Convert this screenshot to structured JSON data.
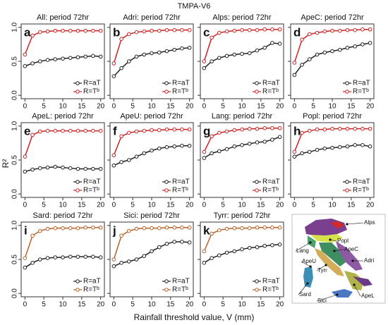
{
  "title": "TMPA-V6",
  "xlabel": "Rainfall threshold value, V (mm)",
  "ylabel": "R²",
  "chart_data": [
    {
      "type": "line",
      "letter": "a",
      "title": "All: period 72hr",
      "x": [
        0,
        2,
        4,
        6,
        8,
        10,
        12,
        14,
        16,
        18,
        20
      ],
      "xlim": [
        -1,
        21
      ],
      "xticks": [
        0,
        5,
        10,
        15,
        20
      ],
      "ylim": [
        -0.05,
        1.05
      ],
      "yticks": [
        {
          "value": 0,
          "label": "0.0"
        },
        {
          "value": 0.5,
          "label": "0.5"
        },
        {
          "value": 1,
          "label": "1.0"
        }
      ],
      "series": [
        {
          "name": "R=aT",
          "color": "#222222",
          "values": [
            0.43,
            0.47,
            0.5,
            0.52,
            0.53,
            0.54,
            0.55,
            0.56,
            0.57,
            0.58,
            0.57
          ]
        },
        {
          "name": "R=Tᵇ",
          "color": "#cc2222",
          "values": [
            0.6,
            0.88,
            0.93,
            0.94,
            0.95,
            0.95,
            0.95,
            0.95,
            0.95,
            0.95,
            0.95
          ]
        }
      ]
    },
    {
      "type": "line",
      "letter": "b",
      "title": "Adri: period 72hr",
      "x": [
        0,
        2,
        4,
        6,
        8,
        10,
        12,
        14,
        16,
        18,
        20
      ],
      "xlim": [
        -1,
        21
      ],
      "xticks": [
        0,
        5,
        10,
        15,
        20
      ],
      "ylim": [
        -0.05,
        1.05
      ],
      "series": [
        {
          "name": "R=aT",
          "color": "#222222",
          "values": [
            0.28,
            0.4,
            0.5,
            0.57,
            0.6,
            0.62,
            0.63,
            0.65,
            0.67,
            0.69,
            0.7
          ]
        },
        {
          "name": "R=Tᵇ",
          "color": "#cc2222",
          "values": [
            0.47,
            0.83,
            0.9,
            0.93,
            0.94,
            0.95,
            0.95,
            0.96,
            0.96,
            0.96,
            0.96
          ]
        }
      ]
    },
    {
      "type": "line",
      "letter": "c",
      "title": "Alps: period 72hr",
      "x": [
        0,
        2,
        4,
        6,
        8,
        10,
        12,
        14,
        16,
        18,
        20
      ],
      "xlim": [
        -1,
        21
      ],
      "xticks": [
        0,
        5,
        10,
        15,
        20
      ],
      "ylim": [
        -0.05,
        1.05
      ],
      "series": [
        {
          "name": "R=aT",
          "color": "#222222",
          "values": [
            0.4,
            0.5,
            0.55,
            0.58,
            0.6,
            0.61,
            0.62,
            0.66,
            0.7,
            0.77,
            0.76
          ]
        },
        {
          "name": "R=Tᵇ",
          "color": "#cc2222",
          "values": [
            0.5,
            0.85,
            0.92,
            0.94,
            0.95,
            0.96,
            0.96,
            0.96,
            0.97,
            0.97,
            0.97
          ]
        }
      ]
    },
    {
      "type": "line",
      "letter": "d",
      "title": "ApeC: period 72hr",
      "x": [
        0,
        2,
        4,
        6,
        8,
        10,
        12,
        14,
        16,
        18,
        20
      ],
      "xlim": [
        -1,
        21
      ],
      "xticks": [
        0,
        5,
        10,
        15,
        20
      ],
      "ylim": [
        -0.05,
        1.05
      ],
      "series": [
        {
          "name": "R=aT",
          "color": "#222222",
          "values": [
            0.3,
            0.45,
            0.53,
            0.6,
            0.63,
            0.65,
            0.67,
            0.7,
            0.72,
            0.75,
            0.77
          ]
        },
        {
          "name": "R=Tᵇ",
          "color": "#cc2222",
          "values": [
            0.48,
            0.82,
            0.9,
            0.92,
            0.94,
            0.95,
            0.95,
            0.96,
            0.96,
            0.97,
            0.97
          ]
        }
      ]
    },
    {
      "type": "line",
      "letter": "e",
      "title": "ApeL: period 72hr",
      "x": [
        0,
        2,
        4,
        6,
        8,
        10,
        12,
        14,
        16,
        18,
        20
      ],
      "xlim": [
        -1,
        21
      ],
      "xticks": [
        0,
        5,
        10,
        15,
        20
      ],
      "ylim": [
        -0.05,
        1.05
      ],
      "yticks": [
        {
          "value": 0,
          "label": "0.0"
        },
        {
          "value": 0.5,
          "label": "0.5"
        },
        {
          "value": 1,
          "label": "1.0"
        }
      ],
      "series": [
        {
          "name": "R=aT",
          "color": "#222222",
          "values": [
            0.33,
            0.36,
            0.38,
            0.39,
            0.4,
            0.39,
            0.38,
            0.37,
            0.37,
            0.37,
            0.37
          ]
        },
        {
          "name": "R=Tᵇ",
          "color": "#cc2222",
          "values": [
            0.55,
            0.87,
            0.92,
            0.93,
            0.93,
            0.93,
            0.93,
            0.93,
            0.93,
            0.93,
            0.93
          ]
        }
      ]
    },
    {
      "type": "line",
      "letter": "f",
      "title": "ApeU: period 72hr",
      "x": [
        0,
        2,
        4,
        6,
        8,
        10,
        12,
        14,
        16,
        18,
        20
      ],
      "xlim": [
        -1,
        21
      ],
      "xticks": [
        0,
        5,
        10,
        15,
        20
      ],
      "ylim": [
        -0.05,
        1.05
      ],
      "series": [
        {
          "name": "R=aT",
          "color": "#222222",
          "values": [
            0.42,
            0.47,
            0.5,
            0.55,
            0.6,
            0.64,
            0.67,
            0.69,
            0.7,
            0.71,
            0.71
          ]
        },
        {
          "name": "R=Tᵇ",
          "color": "#cc2222",
          "values": [
            0.57,
            0.85,
            0.9,
            0.92,
            0.93,
            0.94,
            0.94,
            0.95,
            0.95,
            0.95,
            0.95
          ]
        }
      ]
    },
    {
      "type": "line",
      "letter": "g",
      "title": "Lang: period 72hr",
      "x": [
        0,
        2,
        4,
        6,
        8,
        10,
        12,
        14,
        16,
        18,
        20
      ],
      "xlim": [
        -1,
        21
      ],
      "xticks": [
        0,
        5,
        10,
        15,
        20
      ],
      "ylim": [
        -0.05,
        1.05
      ],
      "series": [
        {
          "name": "R=aT",
          "color": "#222222",
          "values": [
            0.53,
            0.6,
            0.63,
            0.66,
            0.7,
            0.72,
            0.74,
            0.76,
            0.77,
            0.8,
            0.84
          ]
        },
        {
          "name": "R=Tᵇ",
          "color": "#cc2222",
          "values": [
            0.62,
            0.85,
            0.9,
            0.92,
            0.94,
            0.95,
            0.96,
            0.96,
            0.97,
            0.97,
            0.97
          ]
        }
      ]
    },
    {
      "type": "line",
      "letter": "h",
      "title": "Popl: period 72hr",
      "x": [
        0,
        2,
        4,
        6,
        8,
        10,
        12,
        14,
        16,
        18,
        20
      ],
      "xlim": [
        -1,
        21
      ],
      "xticks": [
        0,
        5,
        10,
        15,
        20
      ],
      "ylim": [
        -0.05,
        1.05
      ],
      "series": [
        {
          "name": "R=aT",
          "color": "#222222",
          "values": [
            0.55,
            0.6,
            0.62,
            0.65,
            0.67,
            0.68,
            0.69,
            0.7,
            0.72,
            0.72,
            0.7
          ]
        },
        {
          "name": "R=Tᵇ",
          "color": "#cc2222",
          "values": [
            0.62,
            0.9,
            0.93,
            0.95,
            0.95,
            0.96,
            0.96,
            0.96,
            0.96,
            0.96,
            0.96
          ]
        }
      ]
    },
    {
      "type": "line",
      "letter": "i",
      "title": "Sard: period 72hr",
      "x": [
        0,
        2,
        4,
        6,
        8,
        10,
        12,
        14,
        16,
        18,
        20
      ],
      "xlim": [
        -1,
        21
      ],
      "xticks": [
        0,
        5,
        10,
        15,
        20
      ],
      "ylim": [
        -0.05,
        1.05
      ],
      "yticks": [
        {
          "value": 0,
          "label": "0.0"
        },
        {
          "value": 0.5,
          "label": "0.5"
        },
        {
          "value": 1,
          "label": "1.0"
        }
      ],
      "series": [
        {
          "name": "R=aT",
          "color": "#222222",
          "values": [
            0.38,
            0.45,
            0.5,
            0.52,
            0.53,
            0.53,
            0.54,
            0.54,
            0.54,
            0.54,
            0.53
          ]
        },
        {
          "name": "R=Tᵇ",
          "color": "#b8612a",
          "values": [
            0.52,
            0.85,
            0.92,
            0.95,
            0.96,
            0.96,
            0.96,
            0.96,
            0.97,
            0.97,
            0.97
          ]
        }
      ]
    },
    {
      "type": "line",
      "letter": "j",
      "title": "Sici: period 72hr",
      "x": [
        0,
        2,
        4,
        6,
        8,
        10,
        12,
        14,
        16,
        18,
        20
      ],
      "xlim": [
        -1,
        21
      ],
      "xticks": [
        0,
        5,
        10,
        15,
        20
      ],
      "ylim": [
        -0.05,
        1.05
      ],
      "series": [
        {
          "name": "R=aT",
          "color": "#222222",
          "values": [
            0.4,
            0.45,
            0.47,
            0.5,
            0.55,
            0.62,
            0.68,
            0.73,
            0.76,
            0.76,
            0.75
          ]
        },
        {
          "name": "R=Tᵇ",
          "color": "#b8612a",
          "values": [
            0.5,
            0.85,
            0.92,
            0.95,
            0.96,
            0.96,
            0.96,
            0.97,
            0.97,
            0.97,
            0.97
          ]
        }
      ]
    },
    {
      "type": "line",
      "letter": "k",
      "title": "Tyrr: period 72hr",
      "x": [
        0,
        2,
        4,
        6,
        8,
        10,
        12,
        14,
        16,
        18,
        20
      ],
      "xlim": [
        -1,
        21
      ],
      "xticks": [
        0,
        5,
        10,
        15,
        20
      ],
      "ylim": [
        -0.05,
        1.05
      ],
      "series": [
        {
          "name": "R=aT",
          "color": "#222222",
          "values": [
            0.45,
            0.52,
            0.56,
            0.6,
            0.62,
            0.65,
            0.67,
            0.68,
            0.7,
            0.71,
            0.72
          ]
        },
        {
          "name": "R=Tᵇ",
          "color": "#b8612a",
          "values": [
            0.62,
            0.88,
            0.93,
            0.95,
            0.96,
            0.96,
            0.96,
            0.97,
            0.97,
            0.97,
            0.97
          ]
        }
      ]
    }
  ],
  "map": {
    "labels": [
      "Alps",
      "Popl",
      "Lang",
      "ApeC",
      "Adri",
      "ApeU",
      "Tyrr",
      "Sard",
      "Sici",
      "ApeL"
    ]
  }
}
